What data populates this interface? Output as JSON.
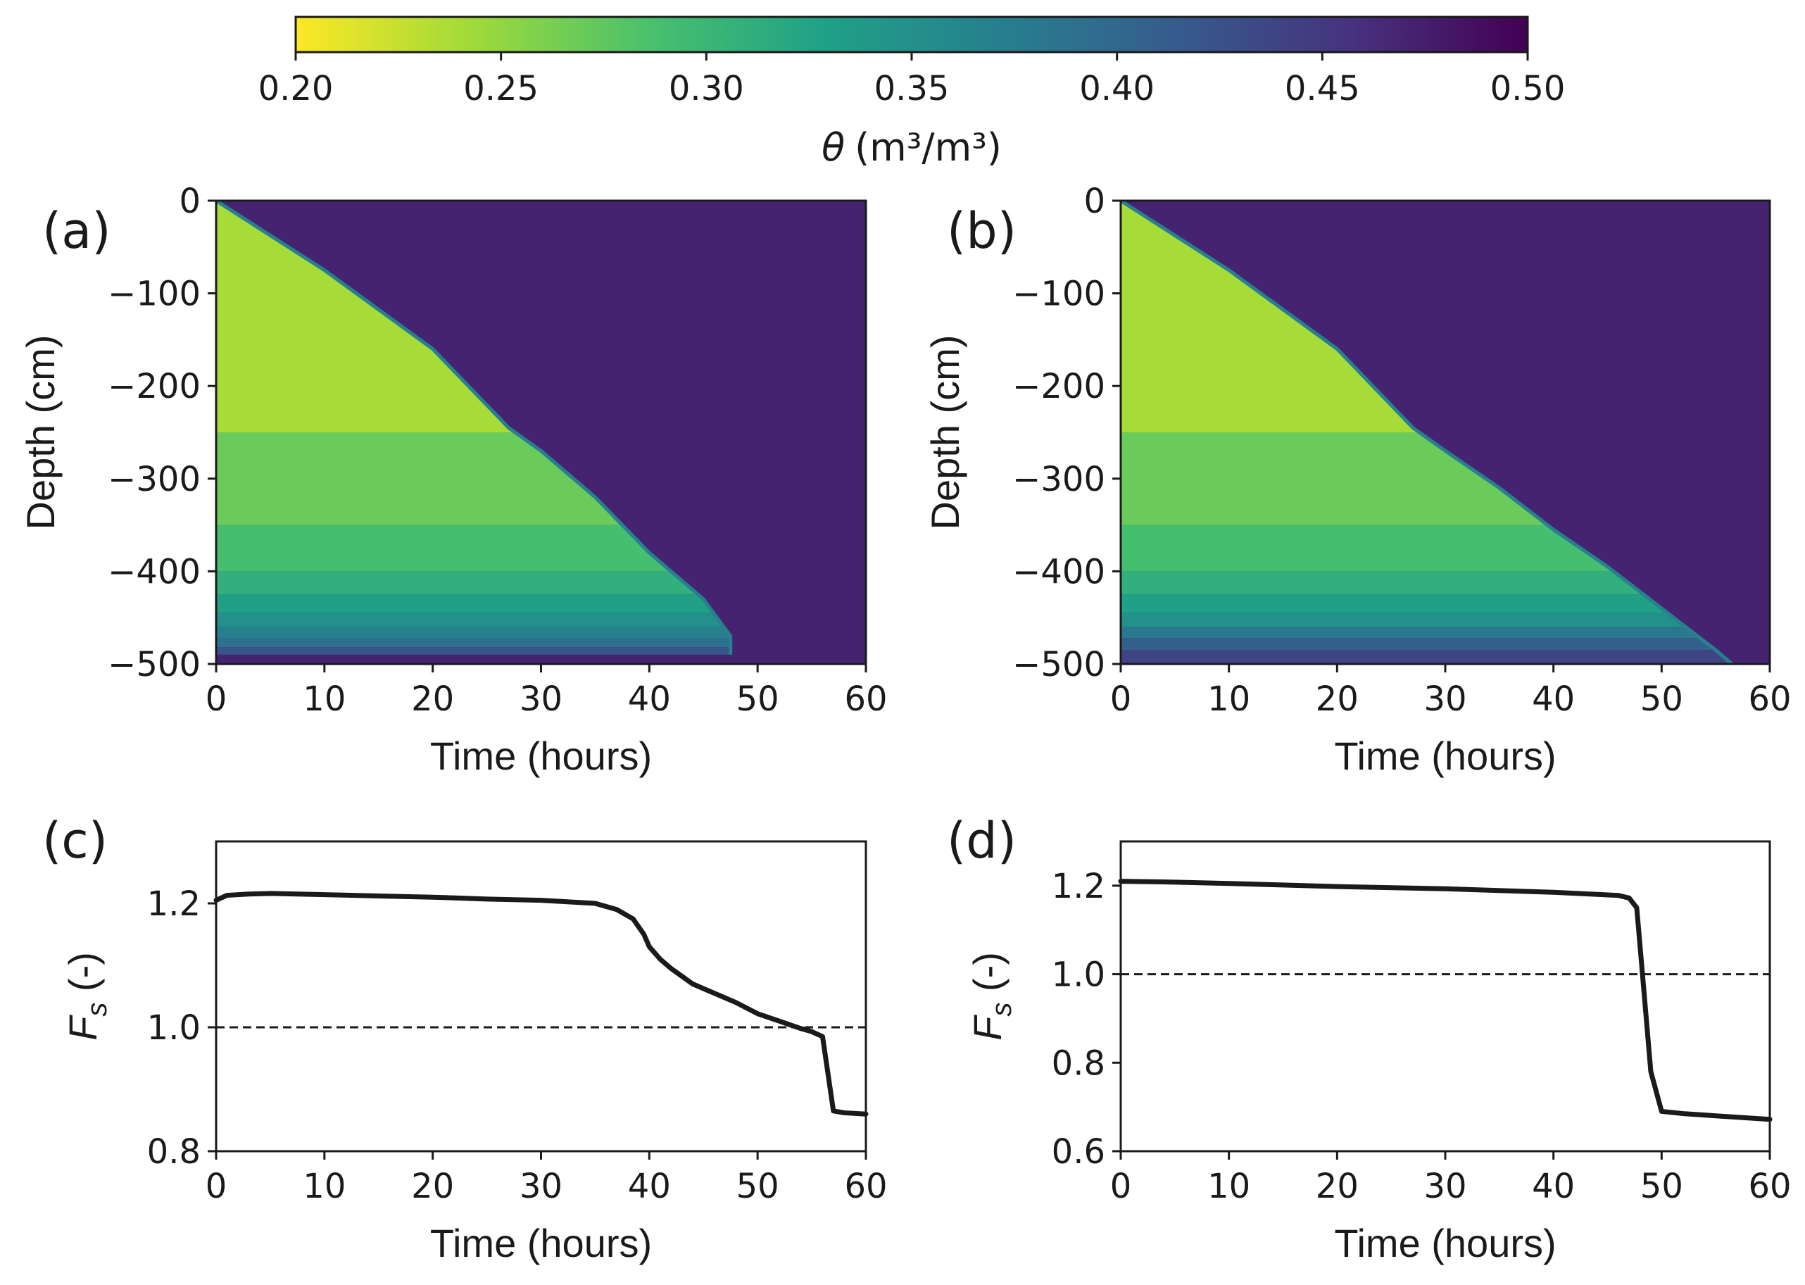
{
  "colorbar": {
    "label_symbol": "θ",
    "label_unit": "(m³/m³)",
    "min": 0.2,
    "max": 0.5,
    "ticks": [
      "0.20",
      "0.25",
      "0.30",
      "0.35",
      "0.40",
      "0.45",
      "0.50"
    ],
    "colors": [
      "#fde725",
      "#a0da39",
      "#4ac16d",
      "#1fa187",
      "#277f8e",
      "#365c8d",
      "#46327e",
      "#440154"
    ]
  },
  "chart_data": [
    {
      "panel": "(a)",
      "type": "heatmap",
      "xlabel": "Time (hours)",
      "ylabel": "Depth (cm)",
      "xlim": [
        0,
        60
      ],
      "ylim": [
        -500,
        0
      ],
      "xticks": [
        "0",
        "10",
        "20",
        "30",
        "40",
        "50",
        "60"
      ],
      "yticks": [
        "0",
        "−100",
        "−200",
        "−300",
        "−400",
        "−500"
      ],
      "saturated_theta": 0.47,
      "wetting_front": [
        [
          0,
          0
        ],
        [
          10,
          -75
        ],
        [
          20,
          -160
        ],
        [
          27,
          -245
        ],
        [
          30,
          -270
        ],
        [
          35,
          -320
        ],
        [
          40,
          -380
        ],
        [
          45,
          -430
        ],
        [
          47.5,
          -470
        ],
        [
          47.5,
          -490
        ]
      ],
      "layers": [
        {
          "top": 0,
          "bottom": -250,
          "theta": 0.24
        },
        {
          "top": -250,
          "bottom": -350,
          "theta": 0.27
        },
        {
          "top": -350,
          "bottom": -400,
          "theta": 0.29
        },
        {
          "top": -400,
          "bottom": -425,
          "theta": 0.31
        },
        {
          "top": -425,
          "bottom": -445,
          "theta": 0.33
        },
        {
          "top": -445,
          "bottom": -460,
          "theta": 0.35
        },
        {
          "top": -460,
          "bottom": -472,
          "theta": 0.37
        },
        {
          "top": -472,
          "bottom": -482,
          "theta": 0.39
        },
        {
          "top": -482,
          "bottom": -490,
          "theta": 0.42
        },
        {
          "top": -490,
          "bottom": -500,
          "theta": 0.47
        }
      ]
    },
    {
      "panel": "(b)",
      "type": "heatmap",
      "xlabel": "Time (hours)",
      "ylabel": "Depth (cm)",
      "xlim": [
        0,
        60
      ],
      "ylim": [
        -500,
        0
      ],
      "xticks": [
        "0",
        "10",
        "20",
        "30",
        "40",
        "50",
        "60"
      ],
      "yticks": [
        "0",
        "−100",
        "−200",
        "−300",
        "−400",
        "−500"
      ],
      "saturated_theta": 0.47,
      "wetting_front": [
        [
          0,
          0
        ],
        [
          10,
          -75
        ],
        [
          20,
          -160
        ],
        [
          27,
          -245
        ],
        [
          30,
          -270
        ],
        [
          35,
          -310
        ],
        [
          40,
          -355
        ],
        [
          45,
          -395
        ],
        [
          50,
          -440
        ],
        [
          55,
          -485
        ],
        [
          56.5,
          -500
        ]
      ],
      "layers": [
        {
          "top": 0,
          "bottom": -250,
          "theta": 0.24
        },
        {
          "top": -250,
          "bottom": -350,
          "theta": 0.27
        },
        {
          "top": -350,
          "bottom": -400,
          "theta": 0.29
        },
        {
          "top": -400,
          "bottom": -425,
          "theta": 0.31
        },
        {
          "top": -425,
          "bottom": -445,
          "theta": 0.33
        },
        {
          "top": -445,
          "bottom": -460,
          "theta": 0.35
        },
        {
          "top": -460,
          "bottom": -472,
          "theta": 0.38
        },
        {
          "top": -472,
          "bottom": -485,
          "theta": 0.41
        },
        {
          "top": -485,
          "bottom": -500,
          "theta": 0.44
        }
      ]
    },
    {
      "panel": "(c)",
      "type": "line",
      "xlabel": "Time (hours)",
      "ylabel_main": "F",
      "ylabel_sub": "s",
      "ylabel_suffix": " (-)",
      "xlim": [
        0,
        60
      ],
      "ylim": [
        0.8,
        1.3
      ],
      "xticks": [
        "0",
        "10",
        "20",
        "30",
        "40",
        "50",
        "60"
      ],
      "yticks": [
        {
          "value": 0.8,
          "label": "0.8"
        },
        {
          "value": 1.0,
          "label": "1.0"
        },
        {
          "value": 1.2,
          "label": "1.2"
        }
      ],
      "threshold": 1.0,
      "series": [
        {
          "name": "Fs",
          "x": [
            0,
            1,
            3,
            5,
            10,
            15,
            20,
            25,
            30,
            35,
            37,
            38.5,
            39.5,
            40,
            41,
            42,
            44,
            46,
            48,
            50,
            52,
            54,
            55,
            56,
            57,
            58,
            60
          ],
          "y": [
            1.205,
            1.213,
            1.215,
            1.216,
            1.214,
            1.212,
            1.21,
            1.207,
            1.205,
            1.2,
            1.19,
            1.175,
            1.15,
            1.13,
            1.11,
            1.095,
            1.07,
            1.055,
            1.04,
            1.022,
            1.01,
            0.998,
            0.993,
            0.985,
            0.865,
            0.862,
            0.86
          ]
        }
      ]
    },
    {
      "panel": "(d)",
      "type": "line",
      "xlabel": "Time (hours)",
      "ylabel_main": "F",
      "ylabel_sub": "s",
      "ylabel_suffix": " (-)",
      "xlim": [
        0,
        60
      ],
      "ylim": [
        0.6,
        1.3
      ],
      "xticks": [
        "0",
        "10",
        "20",
        "30",
        "40",
        "50",
        "60"
      ],
      "yticks": [
        {
          "value": 0.6,
          "label": "0.6"
        },
        {
          "value": 0.8,
          "label": "0.8"
        },
        {
          "value": 1.0,
          "label": "1.0"
        },
        {
          "value": 1.2,
          "label": "1.2"
        }
      ],
      "threshold": 1.0,
      "series": [
        {
          "name": "Fs",
          "x": [
            0,
            5,
            10,
            20,
            30,
            40,
            46,
            47,
            47.7,
            48.3,
            49,
            50,
            52,
            55,
            60
          ],
          "y": [
            1.21,
            1.208,
            1.205,
            1.198,
            1.193,
            1.185,
            1.178,
            1.172,
            1.15,
            0.98,
            0.78,
            0.69,
            0.685,
            0.68,
            0.672
          ]
        }
      ]
    }
  ]
}
